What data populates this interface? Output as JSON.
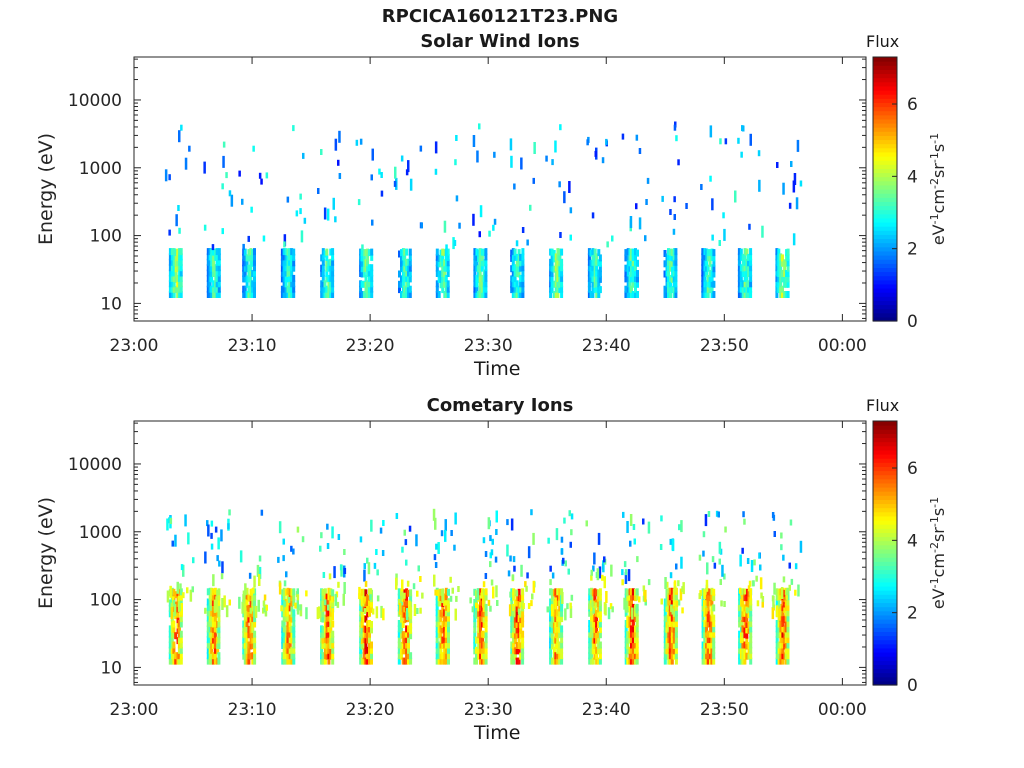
{
  "figure": {
    "title": "RPCICA160121T23.PNG"
  },
  "colors": {
    "axes": "#262626",
    "background": "#ffffff"
  },
  "colormap": "jet",
  "chart_data": [
    {
      "type": "heatmap",
      "title": "Solar Wind Ions",
      "xlabel": "Time",
      "ylabel": "Energy (eV)",
      "yscale": "log",
      "xticks": [
        "23:00",
        "23:10",
        "23:20",
        "23:30",
        "23:40",
        "23:50",
        "00:00"
      ],
      "xlim_minutes": [
        0,
        62
      ],
      "yticks": [
        10,
        100,
        1000,
        10000
      ],
      "ylim": [
        5.5,
        43000
      ],
      "colorbar": {
        "label": "Flux",
        "units": "eV-1cm-2sr-1s-1",
        "range": [
          0,
          7.3
        ],
        "ticks": [
          0,
          2,
          4,
          6
        ]
      },
      "structure": {
        "low_energy_bursts": [
          {
            "t": 3.4,
            "level": 4.2
          },
          {
            "t": 6.6,
            "level": 3.5
          },
          {
            "t": 9.6,
            "level": 3.4
          },
          {
            "t": 12.9,
            "level": 3.2
          },
          {
            "t": 16.2,
            "level": 3.6
          },
          {
            "t": 19.5,
            "level": 3.7
          },
          {
            "t": 22.8,
            "level": 3.4
          },
          {
            "t": 26.0,
            "level": 3.7
          },
          {
            "t": 29.2,
            "level": 3.6
          },
          {
            "t": 32.3,
            "level": 3.4
          },
          {
            "t": 35.6,
            "level": 3.9
          },
          {
            "t": 38.9,
            "level": 3.5
          },
          {
            "t": 42.0,
            "level": 3.5
          },
          {
            "t": 45.3,
            "level": 3.5
          },
          {
            "t": 48.5,
            "level": 3.4
          },
          {
            "t": 51.6,
            "level": 3.6
          },
          {
            "t": 54.8,
            "level": 4.1
          }
        ],
        "burst_energy_range": [
          12,
          55
        ],
        "scatter_energy_range": [
          60,
          4000
        ],
        "scatter_level": 2.5,
        "time_range": [
          3.0,
          57.0
        ]
      }
    },
    {
      "type": "heatmap",
      "title": "Cometary Ions",
      "xlabel": "Time",
      "ylabel": "Energy (eV)",
      "yscale": "log",
      "xticks": [
        "23:00",
        "23:10",
        "23:20",
        "23:30",
        "23:40",
        "23:50",
        "00:00"
      ],
      "xlim_minutes": [
        0,
        62
      ],
      "yticks": [
        10,
        100,
        1000,
        10000
      ],
      "ylim": [
        5.5,
        43000
      ],
      "colorbar": {
        "label": "Flux",
        "units": "eV-1cm-2sr-1s-1",
        "range": [
          0,
          7.3
        ],
        "ticks": [
          0,
          2,
          4,
          6
        ]
      },
      "structure": {
        "low_energy_bursts": [
          {
            "t": 3.4,
            "level": 6.0
          },
          {
            "t": 6.6,
            "level": 5.8
          },
          {
            "t": 9.6,
            "level": 6.1
          },
          {
            "t": 12.9,
            "level": 5.6
          },
          {
            "t": 16.2,
            "level": 6.2
          },
          {
            "t": 19.5,
            "level": 6.3
          },
          {
            "t": 22.8,
            "level": 6.1
          },
          {
            "t": 26.0,
            "level": 6.0
          },
          {
            "t": 29.2,
            "level": 6.2
          },
          {
            "t": 32.3,
            "level": 6.3
          },
          {
            "t": 35.6,
            "level": 5.6
          },
          {
            "t": 38.9,
            "level": 6.0
          },
          {
            "t": 42.0,
            "level": 6.3
          },
          {
            "t": 45.3,
            "level": 6.1
          },
          {
            "t": 48.5,
            "level": 6.0
          },
          {
            "t": 51.6,
            "level": 6.0
          },
          {
            "t": 54.8,
            "level": 6.2
          }
        ],
        "burst_energy_range": [
          11,
          120
        ],
        "scatter_energy_range": [
          60,
          1800
        ],
        "scatter_level": 3.0,
        "time_range": [
          3.0,
          57.0
        ]
      }
    }
  ]
}
